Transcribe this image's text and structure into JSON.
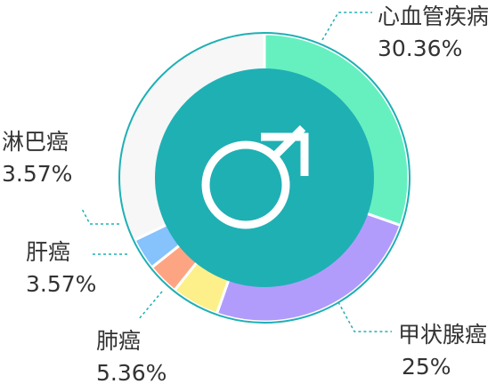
{
  "chart_data": {
    "type": "pie",
    "variant": "donut",
    "title": "",
    "center_icon": "male-symbol-icon",
    "colors": {
      "center": "#1fb0b4",
      "outer_ring": "#1fb0b4",
      "remainder": "#f7f7f7",
      "icon": "#ffffff",
      "leader": "#1fb0b4",
      "text": "#333333"
    },
    "slices": [
      {
        "label": "心血管疾病",
        "value": 30.36,
        "value_label": "30.36%",
        "color": "#66f0c0"
      },
      {
        "label": "甲状腺癌",
        "value": 25,
        "value_label": "25%",
        "color": "#b19cfc"
      },
      {
        "label": "肺癌",
        "value": 5.36,
        "value_label": "5.36%",
        "color": "#fdf08a"
      },
      {
        "label": "肝癌",
        "value": 3.57,
        "value_label": "3.57%",
        "color": "#fda583"
      },
      {
        "label": "淋巴癌",
        "value": 3.57,
        "value_label": "3.57%",
        "color": "#86c2fb"
      }
    ],
    "remainder": {
      "value": 32.14
    }
  }
}
